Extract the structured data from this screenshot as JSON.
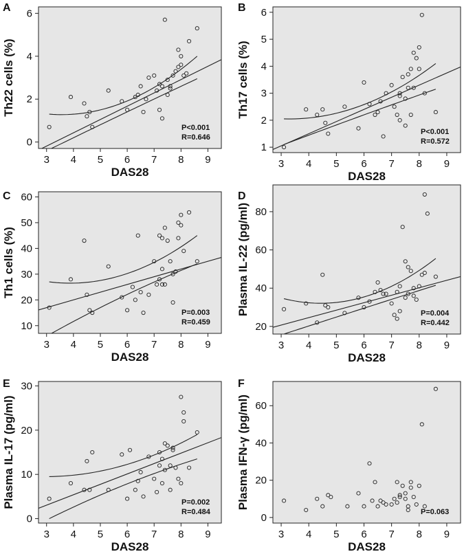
{
  "chart_data": [
    {
      "panel": "A",
      "type": "scatter",
      "xlabel": "DAS28",
      "ylabel": "Th22 cells (%)",
      "xlim": [
        2.7,
        9.5
      ],
      "ylim": [
        -0.3,
        6.3
      ],
      "xticks": [
        3,
        4,
        5,
        6,
        7,
        8,
        9
      ],
      "yticks": [
        0,
        2,
        4,
        6
      ],
      "x": [
        3.1,
        3.9,
        4.4,
        4.5,
        4.6,
        4.7,
        5.3,
        5.8,
        6.0,
        6.3,
        6.4,
        6.5,
        6.6,
        6.7,
        6.8,
        7.0,
        7.1,
        7.2,
        7.2,
        7.3,
        7.3,
        7.4,
        7.5,
        7.5,
        7.6,
        7.6,
        7.7,
        7.8,
        7.9,
        7.9,
        8.0,
        8.0,
        8.1,
        8.2,
        8.3,
        8.6
      ],
      "y": [
        0.7,
        2.1,
        1.8,
        1.2,
        1.4,
        0.7,
        2.4,
        1.9,
        1.5,
        2.1,
        2.2,
        2.6,
        1.4,
        2.0,
        3.0,
        3.1,
        2.4,
        1.5,
        2.7,
        1.1,
        2.6,
        5.7,
        2.2,
        2.9,
        2.6,
        2.5,
        3.1,
        3.3,
        3.5,
        4.3,
        4.0,
        3.6,
        3.1,
        3.2,
        4.7,
        5.3
      ],
      "fit": {
        "slope": 0.62,
        "intercept": -2.05,
        "band_at_min": [
          -0.35,
          1.3
        ],
        "band_at_max": [
          2.95,
          4.0
        ],
        "x_min": 3.1,
        "x_max": 8.6
      },
      "p_text": "P<0.001",
      "r_text": "R=0.646"
    },
    {
      "panel": "B",
      "type": "scatter",
      "xlabel": "DAS28",
      "ylabel": "Th17 cells (%)",
      "xlim": [
        2.7,
        9.5
      ],
      "ylim": [
        0.8,
        6.2
      ],
      "xticks": [
        3,
        4,
        5,
        6,
        7,
        8,
        9
      ],
      "yticks": [
        1,
        2,
        3,
        4,
        5,
        6
      ],
      "x": [
        3.1,
        3.9,
        4.3,
        4.5,
        4.6,
        4.7,
        5.3,
        5.8,
        6.0,
        6.2,
        6.4,
        6.5,
        6.6,
        6.7,
        6.8,
        7.0,
        7.1,
        7.2,
        7.3,
        7.3,
        7.3,
        7.4,
        7.5,
        7.5,
        7.6,
        7.6,
        7.7,
        7.7,
        7.8,
        7.8,
        7.9,
        8.0,
        8.0,
        8.1,
        8.2,
        8.6
      ],
      "y": [
        1.0,
        2.4,
        2.2,
        2.4,
        1.9,
        1.5,
        2.5,
        1.7,
        3.4,
        2.6,
        2.2,
        2.3,
        2.7,
        1.4,
        3.0,
        3.3,
        2.5,
        2.2,
        2.9,
        3.0,
        2.0,
        3.6,
        1.8,
        2.8,
        3.7,
        3.2,
        3.9,
        2.2,
        3.2,
        4.5,
        4.3,
        4.7,
        3.9,
        5.9,
        3.0,
        2.3
      ],
      "fit": {
        "slope": 0.45,
        "intercept": -0.3,
        "band_at_min": [
          1.1,
          2.05
        ],
        "band_at_max": [
          3.15,
          4.1
        ],
        "x_min": 3.1,
        "x_max": 8.6
      },
      "p_text": "P<0.001",
      "r_text": "R=0.572"
    },
    {
      "panel": "C",
      "type": "scatter",
      "xlabel": "DAS28",
      "ylabel": "Th1 cells (%)",
      "xlim": [
        2.7,
        9.5
      ],
      "ylim": [
        7,
        62
      ],
      "xticks": [
        3,
        4,
        5,
        6,
        7,
        8,
        9
      ],
      "yticks": [
        10,
        20,
        30,
        40,
        50,
        60
      ],
      "x": [
        3.1,
        3.9,
        4.4,
        4.5,
        4.6,
        4.7,
        5.3,
        5.8,
        6.0,
        6.2,
        6.3,
        6.4,
        6.5,
        6.6,
        6.8,
        7.0,
        7.1,
        7.2,
        7.2,
        7.3,
        7.3,
        7.3,
        7.4,
        7.4,
        7.5,
        7.6,
        7.7,
        7.7,
        7.8,
        7.9,
        7.9,
        8.0,
        8.0,
        8.1,
        8.3,
        8.6
      ],
      "y": [
        17,
        28,
        43,
        22,
        16,
        15,
        33,
        21,
        16,
        25,
        20,
        45,
        23,
        15,
        22,
        35,
        26,
        28,
        45,
        44,
        32,
        26,
        48,
        26,
        43,
        35,
        19,
        30,
        31,
        44,
        50,
        53,
        49,
        39,
        54,
        35
      ],
      "fit": {
        "slope": 3.0,
        "intercept": 8.0,
        "band_at_min": [
          6.5,
          27.0
        ],
        "band_at_max": [
          34.0,
          45.0
        ],
        "x_min": 3.1,
        "x_max": 8.6
      },
      "p_text": "P=0.003",
      "r_text": "R=0.459"
    },
    {
      "panel": "D",
      "type": "scatter",
      "xlabel": "DAS28",
      "ylabel": "Plasma IL-22 (pg/ml)",
      "xlim": [
        2.7,
        9.5
      ],
      "ylim": [
        16,
        94
      ],
      "xticks": [
        3,
        4,
        5,
        6,
        7,
        8,
        9
      ],
      "yticks": [
        20,
        40,
        60,
        80
      ],
      "x": [
        3.1,
        3.9,
        4.3,
        4.5,
        4.6,
        4.7,
        5.3,
        5.8,
        6.0,
        6.2,
        6.4,
        6.5,
        6.6,
        6.7,
        6.8,
        7.0,
        7.1,
        7.2,
        7.2,
        7.3,
        7.3,
        7.4,
        7.5,
        7.5,
        7.6,
        7.6,
        7.7,
        7.8,
        7.8,
        7.9,
        8.0,
        8.1,
        8.2,
        8.2,
        8.3,
        8.6
      ],
      "y": [
        29,
        32,
        22,
        47,
        31,
        30,
        27,
        35,
        30,
        33,
        38,
        43,
        39,
        37,
        37,
        32,
        26,
        38,
        24,
        41,
        28,
        72,
        54,
        35,
        51,
        37,
        49,
        40,
        36,
        34,
        41,
        47,
        89,
        48,
        79,
        46
      ],
      "fit": {
        "slope": 3.9,
        "intercept": 9.0,
        "band_at_min": [
          16.0,
          34.5
        ],
        "band_at_max": [
          41.5,
          55.5
        ],
        "x_min": 3.1,
        "x_max": 8.6
      },
      "p_text": "P=0.004",
      "r_text": "R=0.442"
    },
    {
      "panel": "E",
      "type": "scatter",
      "xlabel": "DAS28",
      "ylabel": "Plasma IL-17 (pg/ml)",
      "xlim": [
        2.7,
        9.5
      ],
      "ylim": [
        -1,
        31
      ],
      "xticks": [
        3,
        4,
        5,
        6,
        7,
        8,
        9
      ],
      "yticks": [
        0,
        10,
        20,
        30
      ],
      "x": [
        3.1,
        3.9,
        4.4,
        4.5,
        4.6,
        4.7,
        5.3,
        5.8,
        6.0,
        6.1,
        6.3,
        6.4,
        6.5,
        6.6,
        6.8,
        7.0,
        7.1,
        7.2,
        7.2,
        7.3,
        7.3,
        7.4,
        7.4,
        7.5,
        7.6,
        7.6,
        7.7,
        7.7,
        7.8,
        7.9,
        8.0,
        8.0,
        8.1,
        8.1,
        8.3,
        8.6
      ],
      "y": [
        4.5,
        8.0,
        6.5,
        13.0,
        6.5,
        15.0,
        6.5,
        14.5,
        4.5,
        15.5,
        6.5,
        8.5,
        10.5,
        5.0,
        14.0,
        9.0,
        6.0,
        12.0,
        15.0,
        8.0,
        13.5,
        17.0,
        11.0,
        16.5,
        6.5,
        12.0,
        15.5,
        16.0,
        11.5,
        9.0,
        8.0,
        27.5,
        24.0,
        22.0,
        11.5,
        19.5
      ],
      "fit": {
        "slope": 2.35,
        "intercept": -4.0,
        "band_at_min": [
          0.0,
          9.5
        ],
        "band_at_max": [
          13.5,
          19.0
        ],
        "x_min": 3.1,
        "x_max": 8.6
      },
      "p_text": "P=0.002",
      "r_text": "R=0.484"
    },
    {
      "panel": "F",
      "type": "scatter",
      "xlabel": "DAS28",
      "ylabel": "Plasma IFN-γ (pg/ml)",
      "xlim": [
        2.7,
        9.5
      ],
      "ylim": [
        -3,
        73
      ],
      "xticks": [
        3,
        4,
        5,
        6,
        7,
        8,
        9
      ],
      "yticks": [
        0,
        20,
        40,
        60
      ],
      "x": [
        3.1,
        3.9,
        4.3,
        4.5,
        4.7,
        4.8,
        5.4,
        5.8,
        6.0,
        6.2,
        6.3,
        6.4,
        6.5,
        6.6,
        6.7,
        6.8,
        7.0,
        7.1,
        7.2,
        7.2,
        7.3,
        7.3,
        7.4,
        7.5,
        7.5,
        7.6,
        7.6,
        7.7,
        7.7,
        7.8,
        7.9,
        8.0,
        8.1,
        8.2,
        8.6
      ],
      "y": [
        9.0,
        4.0,
        10.0,
        6.0,
        12.0,
        11.0,
        6.0,
        13.0,
        6.0,
        29.0,
        9.0,
        19.0,
        6.0,
        9.0,
        8.0,
        7.0,
        7.0,
        10.0,
        8.0,
        19.0,
        12.0,
        11.0,
        17.0,
        10.0,
        13.0,
        6.0,
        4.0,
        16.0,
        19.0,
        11.0,
        7.0,
        17.0,
        50.0,
        6.0,
        69.0
      ],
      "fit": null,
      "p_text": "P=0.063",
      "r_text": ""
    }
  ]
}
